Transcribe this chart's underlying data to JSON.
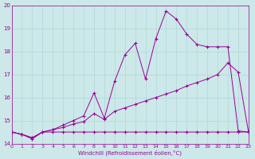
{
  "xlabel": "Windchill (Refroidissement éolien,°C)",
  "line_color": "#990099",
  "bg_color": "#cce8e8",
  "grid_color": "#b0d8d8",
  "xlim": [
    0,
    23
  ],
  "ylim": [
    14,
    20
  ],
  "xticks": [
    0,
    1,
    2,
    3,
    4,
    5,
    6,
    7,
    8,
    9,
    10,
    11,
    12,
    13,
    14,
    15,
    16,
    17,
    18,
    19,
    20,
    21,
    22,
    23
  ],
  "yticks": [
    14,
    15,
    16,
    17,
    18,
    19,
    20
  ],
  "line1_x": [
    0,
    1,
    2,
    3,
    4,
    5,
    6,
    7,
    8,
    9,
    10,
    11,
    12,
    13,
    14,
    15,
    16,
    17,
    18,
    19,
    20,
    21,
    22,
    23
  ],
  "line1_y": [
    14.5,
    14.4,
    14.2,
    14.5,
    14.5,
    14.5,
    14.5,
    14.5,
    14.5,
    14.5,
    14.5,
    14.5,
    14.5,
    14.5,
    14.5,
    14.5,
    14.5,
    14.5,
    14.5,
    14.5,
    14.5,
    14.5,
    14.5,
    14.5
  ],
  "line2_x": [
    0,
    1,
    2,
    3,
    4,
    5,
    6,
    7,
    8,
    9,
    10,
    11,
    12,
    13,
    14,
    15,
    16,
    17,
    18,
    19,
    20,
    21,
    22,
    23
  ],
  "line2_y": [
    14.5,
    14.4,
    14.25,
    14.5,
    14.6,
    14.7,
    14.85,
    14.95,
    15.3,
    15.05,
    15.4,
    15.55,
    15.7,
    15.85,
    16.0,
    16.15,
    16.3,
    16.5,
    16.65,
    16.8,
    17.0,
    17.5,
    17.1,
    14.5
  ],
  "line3_x": [
    0,
    1,
    2,
    3,
    4,
    5,
    6,
    7,
    8,
    9,
    10,
    11,
    12,
    13,
    14,
    15,
    16,
    17,
    18,
    19,
    20,
    21,
    22,
    23
  ],
  "line3_y": [
    14.5,
    14.4,
    14.25,
    14.5,
    14.6,
    14.8,
    15.0,
    15.2,
    16.2,
    15.1,
    16.7,
    17.85,
    18.35,
    16.8,
    18.55,
    19.75,
    19.4,
    18.75,
    18.3,
    18.2,
    18.2,
    18.2,
    14.55,
    14.5
  ]
}
